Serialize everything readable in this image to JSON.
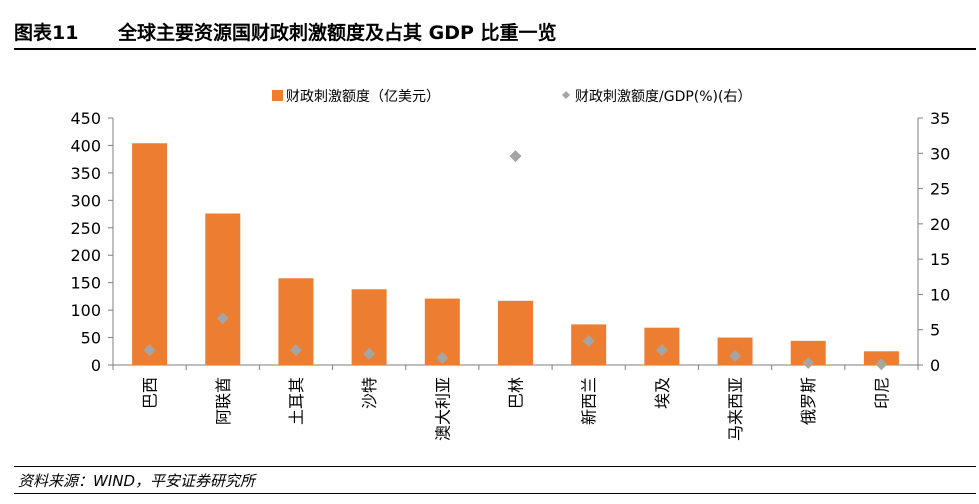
{
  "header": {
    "figure_label": "图表11",
    "title": "全球主要资源国财政刺激额度及占其 GDP 比重一览"
  },
  "footer": {
    "source": "资料来源：WIND，平安证券研究所"
  },
  "colors": {
    "bar": "#ED7D31",
    "marker": "#A5A5A5",
    "axis": "#7F7F7F"
  },
  "chart_data": {
    "type": "bar",
    "categories": [
      "巴西",
      "阿联酋",
      "土耳其",
      "沙特",
      "澳大利亚",
      "巴林",
      "新西兰",
      "埃及",
      "马来西亚",
      "俄罗斯",
      "印尼"
    ],
    "series": [
      {
        "name": "财政刺激额度（亿美元）",
        "type": "bar",
        "axis": "left",
        "values": [
          404,
          276,
          158,
          138,
          121,
          117,
          74,
          68,
          50,
          44,
          25
        ]
      },
      {
        "name": "财政刺激额度/GDP(%)(右）",
        "type": "scatter",
        "axis": "right",
        "values": [
          2.1,
          6.6,
          2.1,
          1.6,
          1.0,
          29.6,
          3.4,
          2.1,
          1.3,
          0.3,
          0.1
        ]
      }
    ],
    "y_left": {
      "min": 0,
      "max": 450,
      "step": 50,
      "ticks": [
        "0",
        "50",
        "100",
        "150",
        "200",
        "250",
        "300",
        "350",
        "400",
        "450"
      ]
    },
    "y_right": {
      "min": 0,
      "max": 35,
      "step": 5,
      "ticks": [
        "0",
        "5",
        "10",
        "15",
        "20",
        "25",
        "30",
        "35"
      ]
    },
    "legend_position": "top",
    "grid": false
  }
}
